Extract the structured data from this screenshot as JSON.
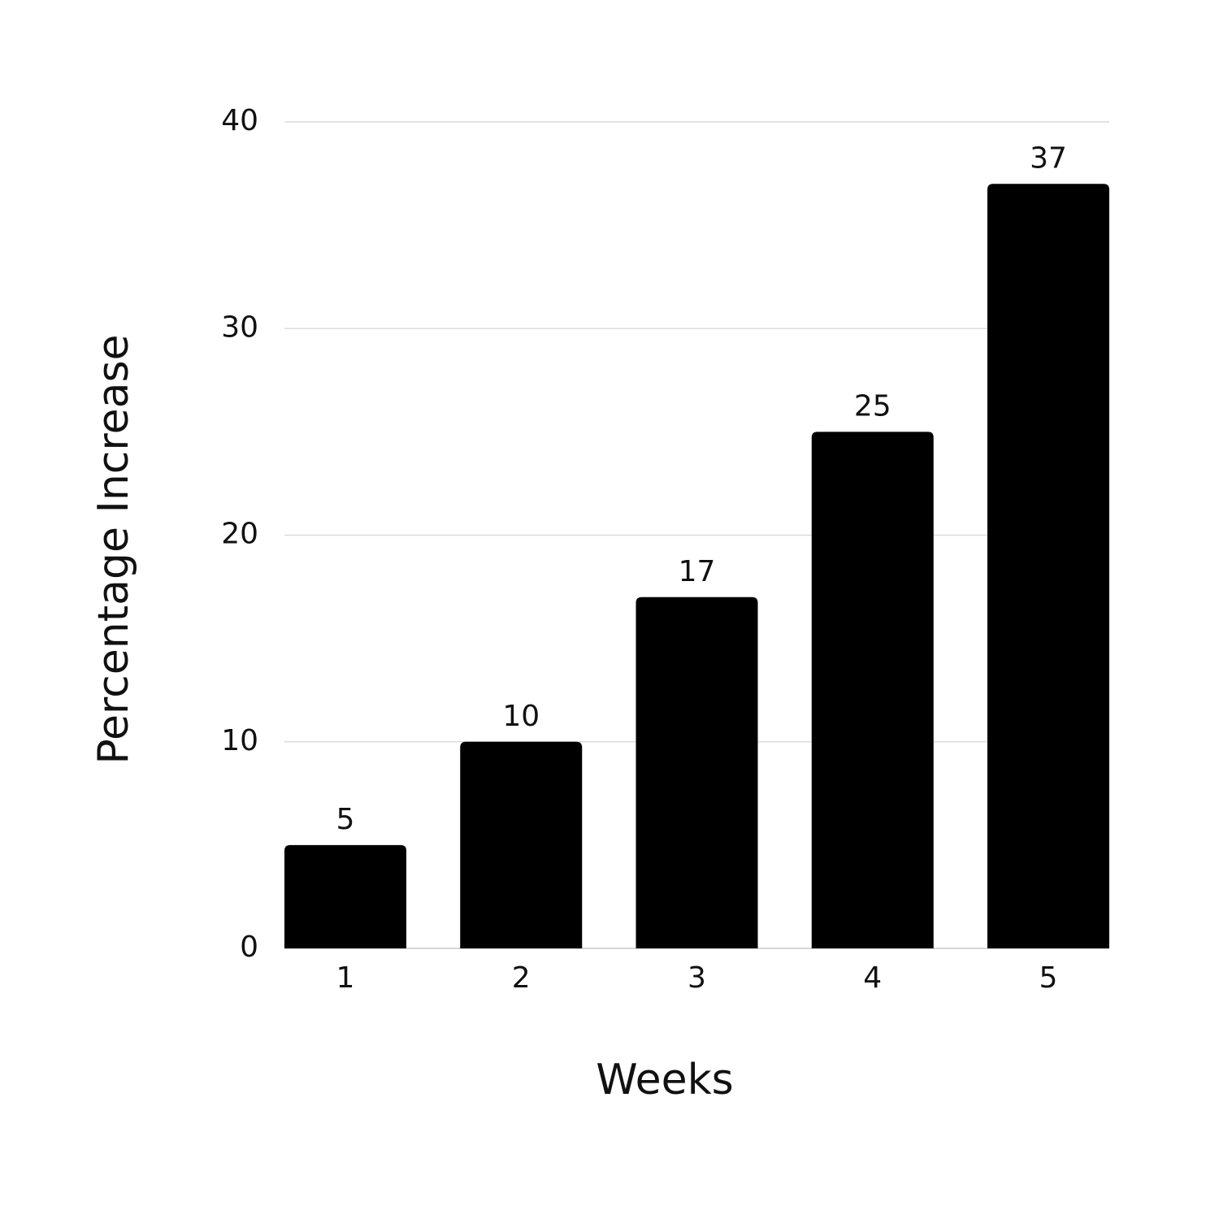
{
  "chart_data": {
    "type": "bar",
    "x_label": "Weeks",
    "y_label": "Percentage Increase",
    "categories": [
      "1",
      "2",
      "3",
      "4",
      "5"
    ],
    "values": [
      5,
      10,
      17,
      25,
      37
    ],
    "color": "#000000",
    "ylim": [
      0,
      40
    ],
    "yticks": [
      0,
      10,
      20,
      30,
      40
    ],
    "grid": true
  }
}
